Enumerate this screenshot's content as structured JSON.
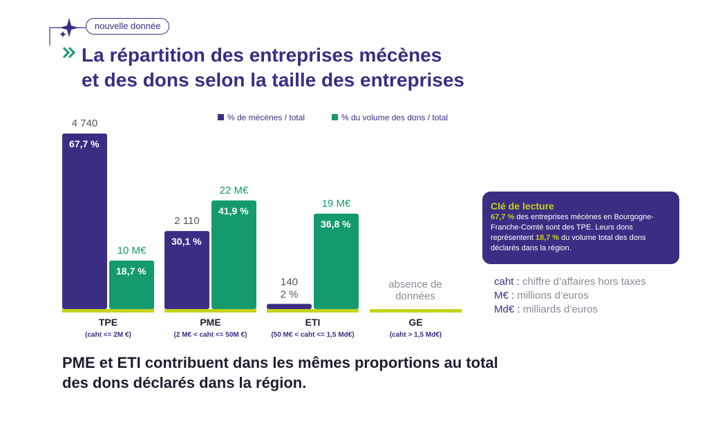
{
  "tag": "nouvelle donnée",
  "chart_data": {
    "type": "bar",
    "title_lines": [
      "La répartition des entreprises mécènes",
      "et des dons selon la taille des entreprises"
    ],
    "categories": [
      "TPE",
      "PME",
      "ETI",
      "GE"
    ],
    "category_notes": [
      "(caht <= 2M €)",
      "(2 M€ < caht <= 50M €)",
      "(50 M€ < caht <= 1,5 Md€)",
      "(caht > 1,5 Md€)"
    ],
    "series": [
      {
        "name": "% de mécènes / total",
        "color": "#3b2d83",
        "values": [
          67.7,
          30.1,
          2,
          null
        ],
        "value_labels": [
          "67,7 %",
          "30,1 %",
          "2 %",
          null
        ],
        "counts": {
          "values": [
            4740,
            2110,
            140,
            null
          ],
          "value_labels": [
            "4 740",
            "2 110",
            "140",
            null
          ]
        }
      },
      {
        "name": "% du volume des dons / total",
        "color": "#149a6e",
        "values": [
          18.7,
          41.9,
          36.8,
          null
        ],
        "value_labels": [
          "18,7 %",
          "41,9 %",
          "36,8 %",
          null
        ],
        "counts": {
          "values": [
            10,
            22,
            19,
            null
          ],
          "value_labels": [
            "10 M€",
            "22 M€",
            "19 M€",
            null
          ]
        }
      }
    ],
    "missing_label": "absence de données",
    "baseline_color": "#c5d21a"
  },
  "key": {
    "title": "Clé de lecture",
    "segments": [
      {
        "text": "67,7 %",
        "highlight": true
      },
      {
        "text": " des entreprises mécènes en Bourgogne-Franche-Comté sont des TPE. Leurs dons représentent ",
        "highlight": false
      },
      {
        "text": "18,7 %",
        "highlight": true
      },
      {
        "text": " du volume total des dons déclarés dans la région.",
        "highlight": false
      }
    ]
  },
  "glossary": [
    {
      "term": "caht",
      "definition": "chiffre d’affaires hors taxes"
    },
    {
      "term": "M€",
      "definition": "millions d’euros"
    },
    {
      "term": "Md€",
      "definition": "milliards d’euros"
    }
  ],
  "conclusion_lines": [
    "PME et ETI contribuent dans les mêmes proportions au total",
    "des dons déclarés dans la région."
  ]
}
